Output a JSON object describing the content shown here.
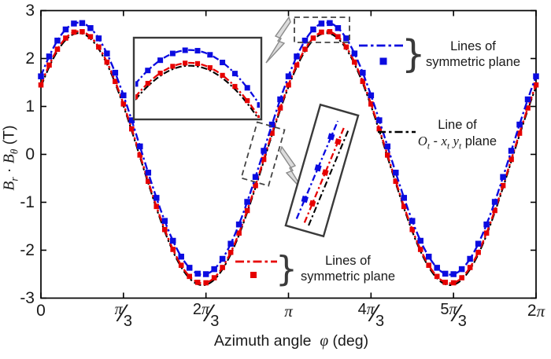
{
  "ui": {
    "axis_color": "#000000",
    "text_color": "#1a1a1a",
    "box_border": "#3a3a3a",
    "dashed_box_color": "#444444",
    "arrow_fill": "#dcdcdc",
    "arrow_stroke": "#8a8a8a",
    "brace_glyph": "}"
  },
  "icons": {
    "zoom_callout_left": "lightning-block-arrow-pointing-left",
    "zoom_callout_right": "lightning-block-arrow-pointing-right"
  },
  "chart_data": {
    "type": "line",
    "title": "",
    "xlabel": "Azimuth angle φ (deg)",
    "ylabel": "Br · Bθ (T)",
    "xlabel_parts": [
      {
        "t": "Azimuth angle  "
      },
      {
        "t": "φ",
        "m": 1
      },
      {
        "t": " (deg)"
      }
    ],
    "ylabel_parts": [
      {
        "t": "B",
        "m": 1
      },
      {
        "sub": "r",
        "m": 1
      },
      {
        "t": " · "
      },
      {
        "t": "B",
        "m": 1
      },
      {
        "sub": "θ",
        "m": 1
      },
      {
        "t": " (T)"
      }
    ],
    "grid": false,
    "legend_position": "inside-right",
    "x_axis": {
      "min_deg": 0,
      "max_deg": 360,
      "frac_slash": "∕",
      "ticks": [
        {
          "deg": 0,
          "parts": [
            {
              "t": "0"
            }
          ],
          "den": null
        },
        {
          "deg": 60,
          "parts": [
            {
              "t": "π",
              "m": 1
            }
          ],
          "den": "3"
        },
        {
          "deg": 120,
          "parts": [
            {
              "t": "2"
            },
            {
              "t": "π",
              "m": 1
            }
          ],
          "den": "3"
        },
        {
          "deg": 180,
          "parts": [
            {
              "t": "π",
              "m": 1
            }
          ],
          "den": null
        },
        {
          "deg": 240,
          "parts": [
            {
              "t": "4"
            },
            {
              "t": "π",
              "m": 1
            }
          ],
          "den": "3"
        },
        {
          "deg": 300,
          "parts": [
            {
              "t": "5"
            },
            {
              "t": "π",
              "m": 1
            }
          ],
          "den": "3"
        },
        {
          "deg": 360,
          "parts": [
            {
              "t": "2"
            },
            {
              "t": "π",
              "m": 1
            }
          ],
          "den": null
        }
      ]
    },
    "y_axis": {
      "min": -3,
      "max": 3,
      "ticks": [
        3,
        2,
        1,
        0,
        -1,
        -2,
        -3
      ]
    },
    "formula": "value(φ) = amplitude · sin(2·φ + 35°) + offset, φ in degrees",
    "series": [
      {
        "name": "Lines of symmetric plane (blue)",
        "color": "#0b0be0",
        "amplitude": 2.63,
        "freq": 2,
        "phase_deg": 35,
        "offset": 0.12,
        "peak_value": 2.75,
        "min_value": -2.51,
        "dash": "dash-dot",
        "marker": "square",
        "marker_step_deg": 6,
        "marker_size": 7.5
      },
      {
        "name": "Lines of symmetric plane (red)",
        "color": "#e60000",
        "amplitude": 2.63,
        "freq": 2,
        "phase_deg": 35,
        "offset": -0.06,
        "peak_value": 2.57,
        "min_value": -2.69,
        "dash": "dash-dot",
        "marker": "square",
        "marker_step_deg": 6,
        "marker_size": 6.6
      },
      {
        "name": "Line of Ot - xt yt plane (black)",
        "color": "#000000",
        "amplitude": 2.63,
        "freq": 2,
        "phase_deg": 35,
        "offset": -0.1,
        "peak_value": 2.53,
        "min_value": -2.73,
        "dash": "dash-dot",
        "marker": "none",
        "marker_step_deg": 0,
        "marker_size": 0
      }
    ],
    "insets": [
      {
        "name": "peak zoom",
        "shows": "magnified first peak region, blue above red above black"
      },
      {
        "name": "zero-crossing zoom",
        "shows": "magnified ascending zero-crossing, rotated box, blue left of red left of black"
      }
    ]
  },
  "legends": {
    "sym_top": {
      "line1": "Lines of",
      "line2": "symmetric plane"
    },
    "plane_mid": {
      "line1": "Line of",
      "line2_parts": [
        {
          "t": "O",
          "m": 1
        },
        {
          "sub": "t",
          "m": 1
        },
        {
          "t": " - "
        },
        {
          "t": "x",
          "m": 1
        },
        {
          "sub": "t",
          "m": 1
        },
        {
          "t": " "
        },
        {
          "t": "y",
          "m": 1
        },
        {
          "sub": "t",
          "m": 1
        },
        {
          "t": " plane"
        }
      ]
    },
    "sym_bottom": {
      "line1": "Lines of",
      "line2": "symmetric plane"
    }
  }
}
